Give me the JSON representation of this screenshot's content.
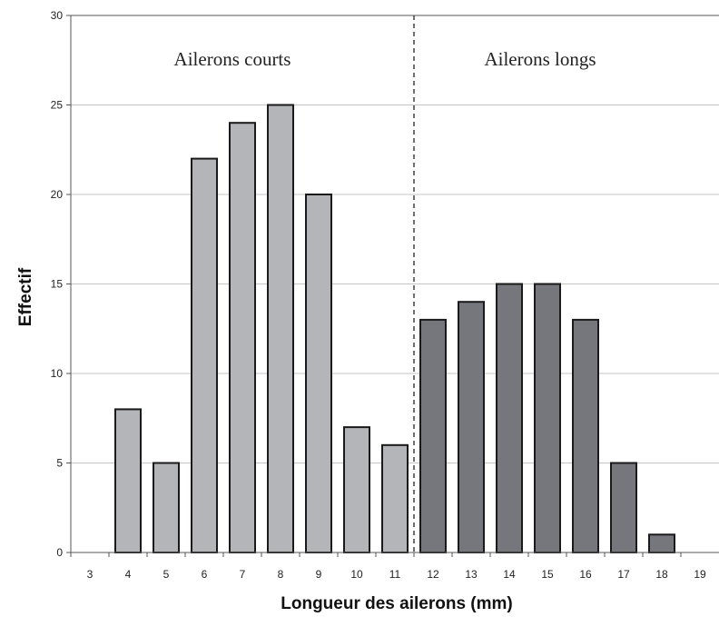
{
  "chart_data": {
    "type": "bar",
    "xlabel": "Longueur des ailerons (mm)",
    "ylabel": "Effectif",
    "ylim": [
      0,
      30
    ],
    "yticks": [
      0,
      5,
      10,
      15,
      20,
      25,
      30
    ],
    "categories": [
      "3",
      "4",
      "5",
      "6",
      "7",
      "8",
      "9",
      "10",
      "11",
      "12",
      "13",
      "14",
      "15",
      "16",
      "17",
      "18",
      "19"
    ],
    "grid": "horizontal",
    "series": [
      {
        "name": "Ailerons courts",
        "color": "#b4b5b9",
        "values": [
          0,
          8,
          5,
          22,
          24,
          25,
          20,
          7,
          6,
          null,
          null,
          null,
          null,
          null,
          null,
          null,
          null
        ]
      },
      {
        "name": "Ailerons longs",
        "color": "#76777c",
        "values": [
          null,
          null,
          null,
          null,
          null,
          null,
          null,
          null,
          null,
          13,
          14,
          15,
          15,
          13,
          5,
          1,
          0
        ]
      }
    ],
    "divider_between": [
      "11",
      "12"
    ],
    "annotations": [
      "Ailerons courts",
      "Ailerons longs"
    ]
  }
}
